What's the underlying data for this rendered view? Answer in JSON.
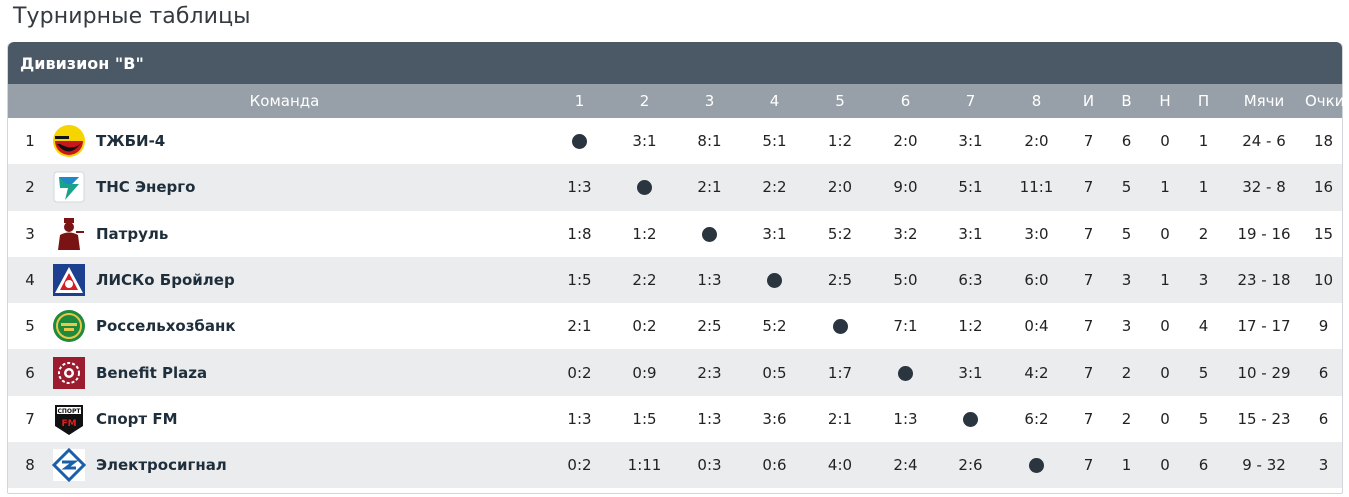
{
  "page": {
    "title": "Турнирные таблицы"
  },
  "division": {
    "title": "Дивизион \"В\""
  },
  "table": {
    "headers": {
      "team": "Команда",
      "games": [
        "1",
        "2",
        "3",
        "4",
        "5",
        "6",
        "7",
        "8"
      ],
      "played": "И",
      "wins": "В",
      "draws": "Н",
      "losses": "П",
      "goals": "Мячи",
      "points": "Очки"
    },
    "result_colors": {
      "win": "#3a7d12",
      "loss": "#b01818",
      "draw": "#222222"
    },
    "rows": [
      {
        "pos": "1",
        "team": "ТЖБИ-4",
        "logo": "tzhbi-logo-icon",
        "results": [
          "",
          "3:1",
          "8:1",
          "5:1",
          "1:2",
          "2:0",
          "3:1",
          "2:0"
        ],
        "outcomes": [
          "self",
          "win",
          "win",
          "win",
          "loss",
          "win",
          "win",
          "win"
        ],
        "played": "7",
        "wins": "6",
        "draws": "0",
        "losses": "1",
        "goals": "24 - 6",
        "points": "18"
      },
      {
        "pos": "2",
        "team": "ТНС Энерго",
        "logo": "tns-energo-logo-icon",
        "results": [
          "1:3",
          "",
          "2:1",
          "2:2",
          "2:0",
          "9:0",
          "5:1",
          "11:1"
        ],
        "outcomes": [
          "loss",
          "self",
          "win",
          "draw",
          "win",
          "win",
          "win",
          "win"
        ],
        "played": "7",
        "wins": "5",
        "draws": "1",
        "losses": "1",
        "goals": "32 - 8",
        "points": "16"
      },
      {
        "pos": "3",
        "team": "Патруль",
        "logo": "patrol-logo-icon",
        "results": [
          "1:8",
          "1:2",
          "",
          "3:1",
          "5:2",
          "3:2",
          "3:1",
          "3:0"
        ],
        "outcomes": [
          "loss",
          "loss",
          "self",
          "win",
          "win",
          "win",
          "win",
          "win"
        ],
        "played": "7",
        "wins": "5",
        "draws": "0",
        "losses": "2",
        "goals": "19 - 16",
        "points": "15"
      },
      {
        "pos": "4",
        "team": "ЛИСКо Бройлер",
        "logo": "lisko-broiler-logo-icon",
        "results": [
          "1:5",
          "2:2",
          "1:3",
          "",
          "2:5",
          "5:0",
          "6:3",
          "6:0"
        ],
        "outcomes": [
          "loss",
          "draw",
          "loss",
          "self",
          "loss",
          "win",
          "win",
          "win"
        ],
        "played": "7",
        "wins": "3",
        "draws": "1",
        "losses": "3",
        "goals": "23 - 18",
        "points": "10"
      },
      {
        "pos": "5",
        "team": "Россельхозбанк",
        "logo": "rosselkhozbank-logo-icon",
        "results": [
          "2:1",
          "0:2",
          "2:5",
          "5:2",
          "",
          "7:1",
          "1:2",
          "0:4"
        ],
        "outcomes": [
          "win",
          "loss",
          "loss",
          "win",
          "self",
          "win",
          "loss",
          "loss"
        ],
        "played": "7",
        "wins": "3",
        "draws": "0",
        "losses": "4",
        "goals": "17 - 17",
        "points": "9"
      },
      {
        "pos": "6",
        "team": "Benefit Plaza",
        "logo": "benefit-plaza-logo-icon",
        "results": [
          "0:2",
          "0:9",
          "2:3",
          "0:5",
          "1:7",
          "",
          "3:1",
          "4:2"
        ],
        "outcomes": [
          "loss",
          "loss",
          "loss",
          "loss",
          "loss",
          "self",
          "win",
          "win"
        ],
        "played": "7",
        "wins": "2",
        "draws": "0",
        "losses": "5",
        "goals": "10 - 29",
        "points": "6"
      },
      {
        "pos": "7",
        "team": "Спорт FM",
        "logo": "sport-fm-logo-icon",
        "results": [
          "1:3",
          "1:5",
          "1:3",
          "3:6",
          "2:1",
          "1:3",
          "",
          "6:2"
        ],
        "outcomes": [
          "loss",
          "loss",
          "loss",
          "loss",
          "win",
          "loss",
          "self",
          "win"
        ],
        "played": "7",
        "wins": "2",
        "draws": "0",
        "losses": "5",
        "goals": "15 - 23",
        "points": "6"
      },
      {
        "pos": "8",
        "team": "Электросигнал",
        "logo": "elektrosignal-logo-icon",
        "results": [
          "0:2",
          "1:11",
          "0:3",
          "0:6",
          "4:0",
          "2:4",
          "2:6",
          ""
        ],
        "outcomes": [
          "loss",
          "loss",
          "loss",
          "loss",
          "win",
          "loss",
          "loss",
          "self"
        ],
        "played": "7",
        "wins": "1",
        "draws": "0",
        "losses": "6",
        "goals": "9 - 32",
        "points": "3"
      }
    ]
  }
}
